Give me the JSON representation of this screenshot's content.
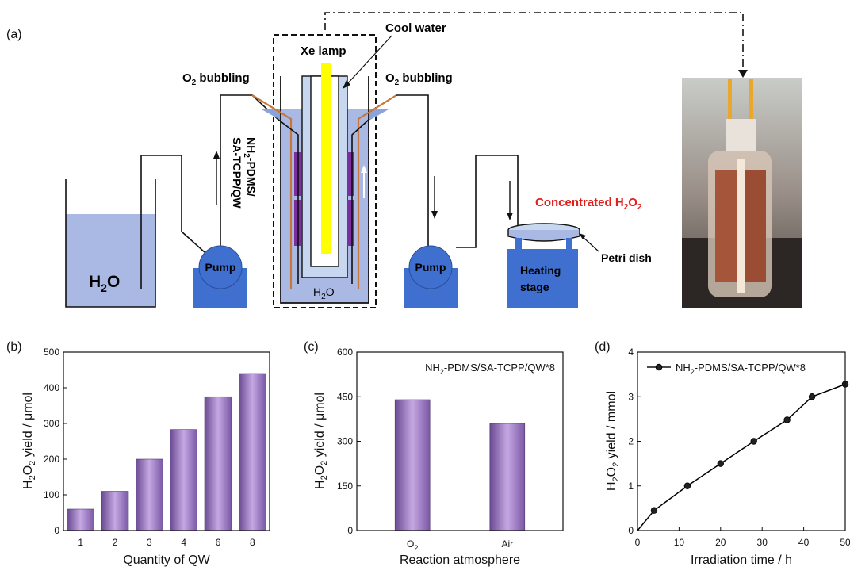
{
  "panels": {
    "a": "(a)",
    "b": "(b)",
    "c": "(c)",
    "d": "(d)"
  },
  "schematic": {
    "xe_lamp": "Xe lamp",
    "cool_water": "Cool water",
    "o2_bubbling_left": [
      "O",
      "2",
      " bubbling"
    ],
    "o2_bubbling_right": [
      "O",
      "2",
      " bubbling"
    ],
    "h2o_reservoir": [
      "H",
      "2",
      "O"
    ],
    "h2o_reactor": [
      "H",
      "2",
      "O"
    ],
    "pump_left": "Pump",
    "pump_right": "Pump",
    "membrane_line1": [
      "NH",
      "2",
      "-PDMS/"
    ],
    "membrane_line2": "SA-TCPP/QW",
    "concentrated": [
      "Concentrated H",
      "2",
      "O",
      "2"
    ],
    "petri_dish": "Petri dish",
    "heating_line1": "Heating",
    "heating_line2": "stage",
    "colors": {
      "water": "#a9b9e3",
      "device": "#3f6fcf",
      "lamp": "#ffff00",
      "membrane": "#7a2f9f",
      "tube": "#c8763a",
      "label_red": "#e0201c"
    }
  },
  "chart_data": [
    {
      "id": "b",
      "type": "bar",
      "categories": [
        "1",
        "2",
        "3",
        "4",
        "6",
        "8"
      ],
      "values": [
        60,
        110,
        200,
        283,
        375,
        440
      ],
      "xlabel": "Quantity of QW",
      "ylabel": [
        "H",
        "2",
        "O",
        "2",
        " yield / μmol"
      ],
      "ylim": [
        0,
        500
      ],
      "yticks": [
        0,
        100,
        200,
        300,
        400,
        500
      ],
      "bar_color": "#9b74c0"
    },
    {
      "id": "c",
      "type": "bar",
      "categories": [
        [
          "O",
          "2"
        ],
        [
          "Air",
          ""
        ]
      ],
      "values": [
        440,
        360
      ],
      "xlabel": "Reaction atmosphere",
      "ylabel": [
        "H",
        "2",
        "O",
        "2",
        " yield / μmol"
      ],
      "ylim": [
        0,
        600
      ],
      "yticks": [
        0,
        150,
        300,
        450,
        600
      ],
      "annotation": [
        "NH",
        "2",
        "-PDMS/SA-TCPP/QW*8"
      ],
      "bar_color": "#9b74c0"
    },
    {
      "id": "d",
      "type": "line",
      "x": [
        0,
        4,
        12,
        20,
        28,
        36,
        42,
        50
      ],
      "y": [
        0,
        0.45,
        1.0,
        1.5,
        2.0,
        2.48,
        3.0,
        3.28
      ],
      "xlabel": "Irradiation time / h",
      "ylabel": [
        "H",
        "2",
        "O",
        "2",
        " yield / mmol"
      ],
      "xlim": [
        0,
        50
      ],
      "ylim": [
        0,
        4
      ],
      "xticks": [
        0,
        10,
        20,
        30,
        40,
        50
      ],
      "yticks": [
        0,
        1,
        2,
        3,
        4
      ],
      "legend": [
        "NH",
        "2",
        "-PDMS/SA-TCPP/QW*8"
      ],
      "legend_position": "top-right",
      "line_color": "#000000"
    }
  ]
}
